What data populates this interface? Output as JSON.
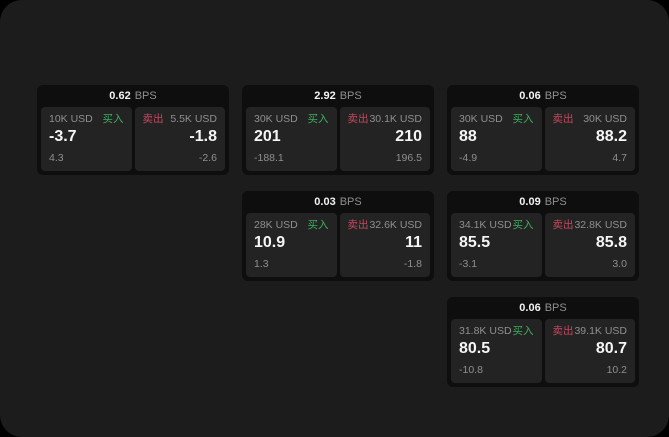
{
  "labels": {
    "bps_unit": "BPS",
    "buy": "买入",
    "sell": "卖出"
  },
  "colors": {
    "page-bg": "#1c1c1c",
    "card-bg": "#0e0e0e",
    "panel-bg": "#232323",
    "buy-green": "#3fae5f",
    "sell-red": "#c4485e",
    "muted-text": "#8f8f8f"
  },
  "cards": [
    {
      "bps": "0.62",
      "buy": {
        "amount": "10K USD",
        "price": "-3.7",
        "sub": "4.3"
      },
      "sell": {
        "amount": "5.5K USD",
        "price": "-1.8",
        "sub": "-2.6"
      }
    },
    {
      "bps": "2.92",
      "buy": {
        "amount": "30K USD",
        "price": "201",
        "sub": "-188.1"
      },
      "sell": {
        "amount": "30.1K USD",
        "price": "210",
        "sub": "196.5"
      }
    },
    {
      "bps": "0.06",
      "buy": {
        "amount": "30K USD",
        "price": "88",
        "sub": "-4.9"
      },
      "sell": {
        "amount": "30K USD",
        "price": "88.2",
        "sub": "4.7"
      }
    },
    {
      "bps": "0.03",
      "buy": {
        "amount": "28K USD",
        "price": "10.9",
        "sub": "1.3"
      },
      "sell": {
        "amount": "32.6K USD",
        "price": "11",
        "sub": "-1.8"
      }
    },
    {
      "bps": "0.09",
      "buy": {
        "amount": "34.1K USD",
        "price": "85.5",
        "sub": "-3.1"
      },
      "sell": {
        "amount": "32.8K USD",
        "price": "85.8",
        "sub": "3.0"
      }
    },
    {
      "bps": "0.06",
      "buy": {
        "amount": "31.8K USD",
        "price": "80.5",
        "sub": "-10.8"
      },
      "sell": {
        "amount": "39.1K USD",
        "price": "80.7",
        "sub": "10.2"
      }
    }
  ]
}
